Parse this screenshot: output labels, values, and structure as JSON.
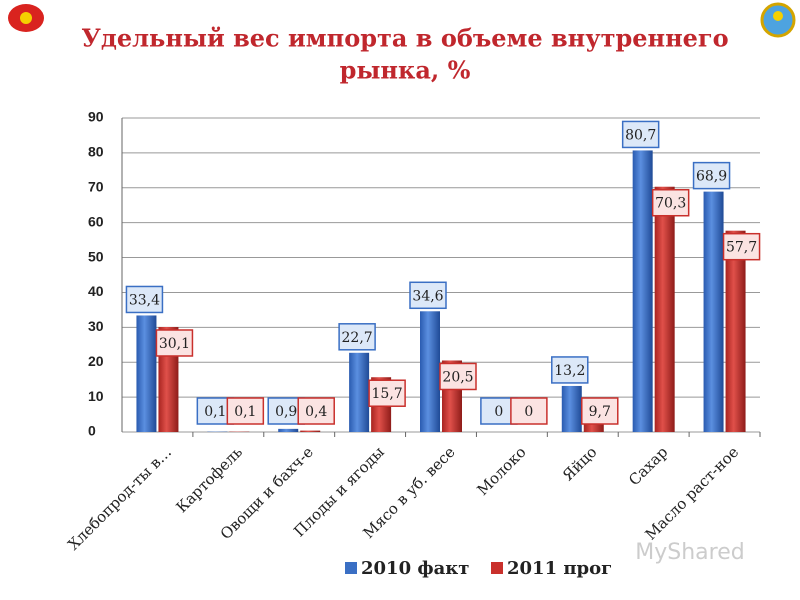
{
  "chart_data": {
    "type": "bar",
    "title": [
      "Удельный вес импорта в объеме внутреннего",
      "рынка, %"
    ],
    "categories": [
      "Хлебопрод-ты в…",
      "Картофель",
      "Овощи и бахч-е",
      "Плоды и ягоды",
      "Мясо в уб. весе",
      "Молоко",
      "Яйцо",
      "Сахар",
      "Масло раст-ное"
    ],
    "series": [
      {
        "name": "2010 факт",
        "color": "#3a6fc4",
        "values": [
          33.4,
          0.1,
          0.9,
          22.7,
          34.6,
          0,
          13.2,
          80.7,
          68.9
        ],
        "value_labels": [
          "33,4",
          "0,1",
          "0,9",
          "22,7",
          "34,6",
          "0",
          "13,2",
          "80,7",
          "68,9"
        ]
      },
      {
        "name": "2011 прог",
        "color": "#c9302c",
        "values": [
          30.1,
          0.1,
          0.4,
          15.7,
          20.5,
          0,
          9.7,
          70.3,
          57.7
        ],
        "value_labels": [
          "30,1",
          "0,1",
          "0,4",
          "15,7",
          "20,5",
          "0",
          "9,7",
          "70,3",
          "57,7"
        ]
      }
    ],
    "ylim": [
      0,
      90
    ],
    "yticks": [
      0,
      10,
      20,
      30,
      40,
      50,
      60,
      70,
      80,
      90
    ],
    "grid": true,
    "legend": "bottom",
    "watermark": "MyShared"
  }
}
